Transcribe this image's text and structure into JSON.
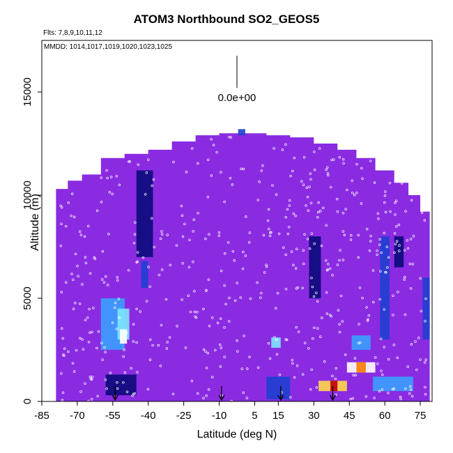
{
  "chart_data": {
    "type": "heatmap",
    "title": "ATOM3 Northbound SO2_GEOS5",
    "flights_note": "Flts: 7,8,9,10,11,12",
    "mmdd_note": "MMDD: 1014,1017,1019,1020,1023,1025",
    "colorbar_label": "0.0e+00",
    "xlabel": "Latitude (deg N)",
    "ylabel": "Altitude (m)",
    "xlim": [
      -85,
      80
    ],
    "ylim": [
      0,
      17500
    ],
    "x_ticks": [
      -85,
      -70,
      -55,
      -40,
      -25,
      -10,
      5,
      15,
      30,
      45,
      60,
      75
    ],
    "y_ticks": [
      0,
      5000,
      10000,
      15000
    ],
    "y_tick_labels": [
      "0",
      "5000",
      "10000",
      "15000"
    ],
    "grid": false,
    "background_color": "#8a2be2",
    "colormap": [
      "#0a0a7a",
      "#1e3fd0",
      "#3aa0ff",
      "#7de6ff",
      "#ffffff",
      "#ffd84a",
      "#ff7a00",
      "#c00000"
    ],
    "arrow_latitudes": [
      -54,
      -9,
      16,
      38
    ],
    "coverage": [
      {
        "lat": -79,
        "top": 10300
      },
      {
        "lat": -74,
        "top": 10700
      },
      {
        "lat": -68,
        "top": 11000
      },
      {
        "lat": -60,
        "top": 11800
      },
      {
        "lat": -50,
        "top": 12000
      },
      {
        "lat": -40,
        "top": 12200
      },
      {
        "lat": -30,
        "top": 12600
      },
      {
        "lat": -20,
        "top": 12900
      },
      {
        "lat": -10,
        "top": 13000
      },
      {
        "lat": 0,
        "top": 13000
      },
      {
        "lat": 10,
        "top": 12900
      },
      {
        "lat": 20,
        "top": 12800
      },
      {
        "lat": 30,
        "top": 12500
      },
      {
        "lat": 40,
        "top": 12200
      },
      {
        "lat": 48,
        "top": 11800
      },
      {
        "lat": 56,
        "top": 11200
      },
      {
        "lat": 64,
        "top": 10600
      },
      {
        "lat": 70,
        "top": 10000
      },
      {
        "lat": 75,
        "top": 9200
      },
      {
        "lat": 79,
        "top": 8800
      }
    ],
    "patches": [
      {
        "lat0": -60,
        "lat1": -50,
        "alt0": 2500,
        "alt1": 5000,
        "level": 0.3
      },
      {
        "lat0": -53,
        "lat1": -48,
        "alt0": 3000,
        "alt1": 4500,
        "level": 0.45
      },
      {
        "lat0": -52,
        "lat1": -49,
        "alt0": 2800,
        "alt1": 3500,
        "level": 0.55
      },
      {
        "lat0": -45,
        "lat1": -38,
        "alt0": 7000,
        "alt1": 11200,
        "level": 0.05
      },
      {
        "lat0": -43,
        "lat1": -40,
        "alt0": 5500,
        "alt1": 6800,
        "level": 0.2
      },
      {
        "lat0": -58,
        "lat1": -45,
        "alt0": 300,
        "alt1": 1300,
        "level": 0.05
      },
      {
        "lat0": 12,
        "lat1": 16,
        "alt0": 2600,
        "alt1": 3100,
        "level": 0.45
      },
      {
        "lat0": 10,
        "lat1": 20,
        "alt0": 100,
        "alt1": 1200,
        "level": 0.1
      },
      {
        "lat0": 32,
        "lat1": 44,
        "alt0": 500,
        "alt1": 1000,
        "level": 0.7
      },
      {
        "lat0": 37,
        "lat1": 40,
        "alt0": 500,
        "alt1": 1000,
        "level": 0.95
      },
      {
        "lat0": 44,
        "lat1": 56,
        "alt0": 1400,
        "alt1": 1900,
        "level": 0.6
      },
      {
        "lat0": 48,
        "lat1": 52,
        "alt0": 1400,
        "alt1": 1900,
        "level": 0.9
      },
      {
        "lat0": 46,
        "lat1": 54,
        "alt0": 2500,
        "alt1": 3200,
        "level": 0.3
      },
      {
        "lat0": 55,
        "lat1": 72,
        "alt0": 500,
        "alt1": 1200,
        "level": 0.3
      },
      {
        "lat0": 58,
        "lat1": 62,
        "alt0": 3000,
        "alt1": 8000,
        "level": 0.1
      },
      {
        "lat0": 64,
        "lat1": 68,
        "alt0": 6500,
        "alt1": 8000,
        "level": 0.05
      },
      {
        "lat0": 76,
        "lat1": 79,
        "alt0": 3000,
        "alt1": 6000,
        "level": 0.15
      },
      {
        "lat0": 28,
        "lat1": 33,
        "alt0": 5000,
        "alt1": 8000,
        "level": 0.05
      },
      {
        "lat0": -2,
        "lat1": 1,
        "alt0": 12900,
        "alt1": 13200,
        "level": 0.2
      }
    ]
  }
}
